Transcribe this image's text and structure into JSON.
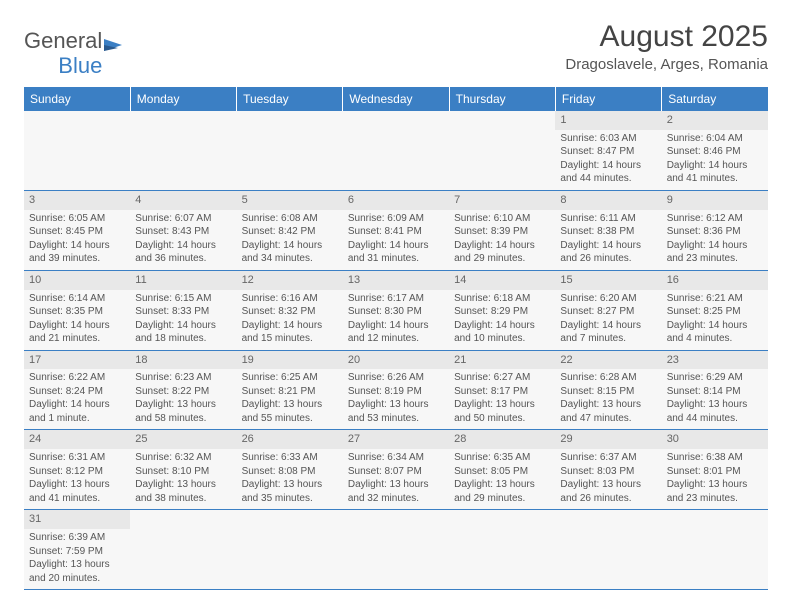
{
  "logo": {
    "text1": "General",
    "text2": "Blue"
  },
  "title": "August 2025",
  "location": "Dragoslavele, Arges, Romania",
  "colors": {
    "header_bg": "#3b7fc4",
    "header_text": "#ffffff",
    "day_row_bg": "#e8e8e8",
    "cell_bg": "#f7f7f7",
    "border": "#3b7fc4",
    "text": "#555555",
    "title_text": "#444444"
  },
  "day_headers": [
    "Sunday",
    "Monday",
    "Tuesday",
    "Wednesday",
    "Thursday",
    "Friday",
    "Saturday"
  ],
  "weeks": [
    [
      {
        "empty": true
      },
      {
        "empty": true
      },
      {
        "empty": true
      },
      {
        "empty": true
      },
      {
        "empty": true
      },
      {
        "day": "1",
        "sunrise": "Sunrise: 6:03 AM",
        "sunset": "Sunset: 8:47 PM",
        "daylight1": "Daylight: 14 hours",
        "daylight2": "and 44 minutes."
      },
      {
        "day": "2",
        "sunrise": "Sunrise: 6:04 AM",
        "sunset": "Sunset: 8:46 PM",
        "daylight1": "Daylight: 14 hours",
        "daylight2": "and 41 minutes."
      }
    ],
    [
      {
        "day": "3",
        "sunrise": "Sunrise: 6:05 AM",
        "sunset": "Sunset: 8:45 PM",
        "daylight1": "Daylight: 14 hours",
        "daylight2": "and 39 minutes."
      },
      {
        "day": "4",
        "sunrise": "Sunrise: 6:07 AM",
        "sunset": "Sunset: 8:43 PM",
        "daylight1": "Daylight: 14 hours",
        "daylight2": "and 36 minutes."
      },
      {
        "day": "5",
        "sunrise": "Sunrise: 6:08 AM",
        "sunset": "Sunset: 8:42 PM",
        "daylight1": "Daylight: 14 hours",
        "daylight2": "and 34 minutes."
      },
      {
        "day": "6",
        "sunrise": "Sunrise: 6:09 AM",
        "sunset": "Sunset: 8:41 PM",
        "daylight1": "Daylight: 14 hours",
        "daylight2": "and 31 minutes."
      },
      {
        "day": "7",
        "sunrise": "Sunrise: 6:10 AM",
        "sunset": "Sunset: 8:39 PM",
        "daylight1": "Daylight: 14 hours",
        "daylight2": "and 29 minutes."
      },
      {
        "day": "8",
        "sunrise": "Sunrise: 6:11 AM",
        "sunset": "Sunset: 8:38 PM",
        "daylight1": "Daylight: 14 hours",
        "daylight2": "and 26 minutes."
      },
      {
        "day": "9",
        "sunrise": "Sunrise: 6:12 AM",
        "sunset": "Sunset: 8:36 PM",
        "daylight1": "Daylight: 14 hours",
        "daylight2": "and 23 minutes."
      }
    ],
    [
      {
        "day": "10",
        "sunrise": "Sunrise: 6:14 AM",
        "sunset": "Sunset: 8:35 PM",
        "daylight1": "Daylight: 14 hours",
        "daylight2": "and 21 minutes."
      },
      {
        "day": "11",
        "sunrise": "Sunrise: 6:15 AM",
        "sunset": "Sunset: 8:33 PM",
        "daylight1": "Daylight: 14 hours",
        "daylight2": "and 18 minutes."
      },
      {
        "day": "12",
        "sunrise": "Sunrise: 6:16 AM",
        "sunset": "Sunset: 8:32 PM",
        "daylight1": "Daylight: 14 hours",
        "daylight2": "and 15 minutes."
      },
      {
        "day": "13",
        "sunrise": "Sunrise: 6:17 AM",
        "sunset": "Sunset: 8:30 PM",
        "daylight1": "Daylight: 14 hours",
        "daylight2": "and 12 minutes."
      },
      {
        "day": "14",
        "sunrise": "Sunrise: 6:18 AM",
        "sunset": "Sunset: 8:29 PM",
        "daylight1": "Daylight: 14 hours",
        "daylight2": "and 10 minutes."
      },
      {
        "day": "15",
        "sunrise": "Sunrise: 6:20 AM",
        "sunset": "Sunset: 8:27 PM",
        "daylight1": "Daylight: 14 hours",
        "daylight2": "and 7 minutes."
      },
      {
        "day": "16",
        "sunrise": "Sunrise: 6:21 AM",
        "sunset": "Sunset: 8:25 PM",
        "daylight1": "Daylight: 14 hours",
        "daylight2": "and 4 minutes."
      }
    ],
    [
      {
        "day": "17",
        "sunrise": "Sunrise: 6:22 AM",
        "sunset": "Sunset: 8:24 PM",
        "daylight1": "Daylight: 14 hours",
        "daylight2": "and 1 minute."
      },
      {
        "day": "18",
        "sunrise": "Sunrise: 6:23 AM",
        "sunset": "Sunset: 8:22 PM",
        "daylight1": "Daylight: 13 hours",
        "daylight2": "and 58 minutes."
      },
      {
        "day": "19",
        "sunrise": "Sunrise: 6:25 AM",
        "sunset": "Sunset: 8:21 PM",
        "daylight1": "Daylight: 13 hours",
        "daylight2": "and 55 minutes."
      },
      {
        "day": "20",
        "sunrise": "Sunrise: 6:26 AM",
        "sunset": "Sunset: 8:19 PM",
        "daylight1": "Daylight: 13 hours",
        "daylight2": "and 53 minutes."
      },
      {
        "day": "21",
        "sunrise": "Sunrise: 6:27 AM",
        "sunset": "Sunset: 8:17 PM",
        "daylight1": "Daylight: 13 hours",
        "daylight2": "and 50 minutes."
      },
      {
        "day": "22",
        "sunrise": "Sunrise: 6:28 AM",
        "sunset": "Sunset: 8:15 PM",
        "daylight1": "Daylight: 13 hours",
        "daylight2": "and 47 minutes."
      },
      {
        "day": "23",
        "sunrise": "Sunrise: 6:29 AM",
        "sunset": "Sunset: 8:14 PM",
        "daylight1": "Daylight: 13 hours",
        "daylight2": "and 44 minutes."
      }
    ],
    [
      {
        "day": "24",
        "sunrise": "Sunrise: 6:31 AM",
        "sunset": "Sunset: 8:12 PM",
        "daylight1": "Daylight: 13 hours",
        "daylight2": "and 41 minutes."
      },
      {
        "day": "25",
        "sunrise": "Sunrise: 6:32 AM",
        "sunset": "Sunset: 8:10 PM",
        "daylight1": "Daylight: 13 hours",
        "daylight2": "and 38 minutes."
      },
      {
        "day": "26",
        "sunrise": "Sunrise: 6:33 AM",
        "sunset": "Sunset: 8:08 PM",
        "daylight1": "Daylight: 13 hours",
        "daylight2": "and 35 minutes."
      },
      {
        "day": "27",
        "sunrise": "Sunrise: 6:34 AM",
        "sunset": "Sunset: 8:07 PM",
        "daylight1": "Daylight: 13 hours",
        "daylight2": "and 32 minutes."
      },
      {
        "day": "28",
        "sunrise": "Sunrise: 6:35 AM",
        "sunset": "Sunset: 8:05 PM",
        "daylight1": "Daylight: 13 hours",
        "daylight2": "and 29 minutes."
      },
      {
        "day": "29",
        "sunrise": "Sunrise: 6:37 AM",
        "sunset": "Sunset: 8:03 PM",
        "daylight1": "Daylight: 13 hours",
        "daylight2": "and 26 minutes."
      },
      {
        "day": "30",
        "sunrise": "Sunrise: 6:38 AM",
        "sunset": "Sunset: 8:01 PM",
        "daylight1": "Daylight: 13 hours",
        "daylight2": "and 23 minutes."
      }
    ],
    [
      {
        "day": "31",
        "sunrise": "Sunrise: 6:39 AM",
        "sunset": "Sunset: 7:59 PM",
        "daylight1": "Daylight: 13 hours",
        "daylight2": "and 20 minutes."
      },
      {
        "empty": true
      },
      {
        "empty": true
      },
      {
        "empty": true
      },
      {
        "empty": true
      },
      {
        "empty": true
      },
      {
        "empty": true
      }
    ]
  ]
}
